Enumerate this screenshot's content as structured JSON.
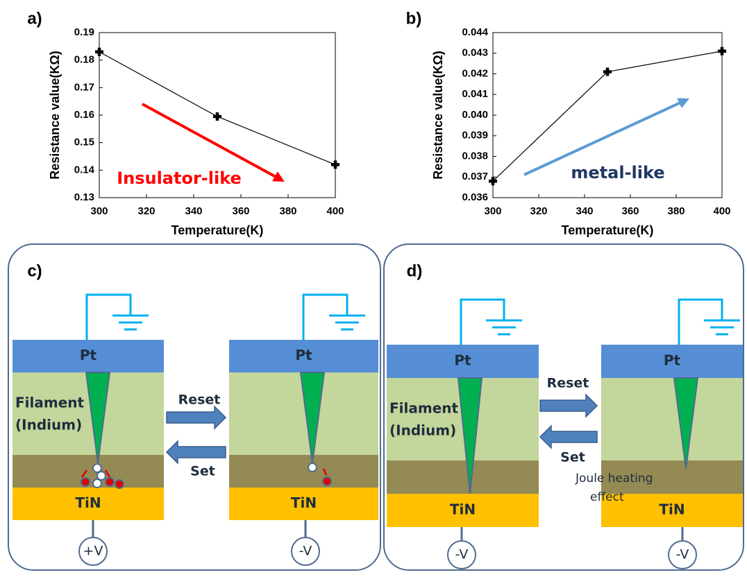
{
  "chart_data": [
    {
      "type": "line",
      "panel_label": "a)",
      "x_label": "Temperature(K)",
      "y_label": "Resistance value(KΩ)",
      "x": [
        300,
        350,
        400
      ],
      "values": [
        0.183,
        0.1595,
        0.142
      ],
      "color": "#000000",
      "xlim": [
        300,
        400
      ],
      "xticks": [
        300,
        320,
        340,
        360,
        380,
        400
      ],
      "ylim": [
        0.13,
        0.19
      ],
      "yticks": [
        0.13,
        0.14,
        0.15,
        0.16,
        0.17,
        0.18,
        0.19
      ],
      "annotation": "Insulator-like",
      "annotation_color": "#ff0000",
      "arrow_color": "#ff0000"
    },
    {
      "type": "line",
      "panel_label": "b)",
      "x_label": "Temperature(K)",
      "y_label": "Resistance value(KΩ)",
      "x": [
        300,
        350,
        400
      ],
      "values": [
        0.0368,
        0.0421,
        0.0431
      ],
      "color": "#000000",
      "xlim": [
        300,
        400
      ],
      "xticks": [
        300,
        320,
        340,
        360,
        380,
        400
      ],
      "ylim": [
        0.036,
        0.044
      ],
      "yticks": [
        0.036,
        0.037,
        0.038,
        0.039,
        {
          "value": 0.04,
          "label": "0.040"
        },
        0.041,
        0.042,
        0.043,
        0.044
      ],
      "annotation": "metal-like",
      "annotation_color": "#1f3864",
      "arrow_color": "#5b9bd5"
    }
  ],
  "diagrams": {
    "c": {
      "panel_label": "c)",
      "reset": "Reset",
      "set": "Set",
      "left": {
        "top": "Pt",
        "bottom": "TiN",
        "filament": "Filament",
        "filament_sub": "(Indium)",
        "voltage": "+V"
      },
      "right": {
        "top": "Pt",
        "bottom": "TiN",
        "voltage": "-V"
      }
    },
    "d": {
      "panel_label": "d)",
      "reset": "Reset",
      "set": "Set",
      "left": {
        "top": "Pt",
        "bottom": "TiN",
        "filament": "Filament",
        "filament_sub": "(Indium)",
        "voltage": "-V"
      },
      "right": {
        "top": "Pt",
        "bottom": "TiN",
        "voltage": "-V",
        "joule": "Joule heating",
        "joule_sub": "effect"
      }
    }
  }
}
